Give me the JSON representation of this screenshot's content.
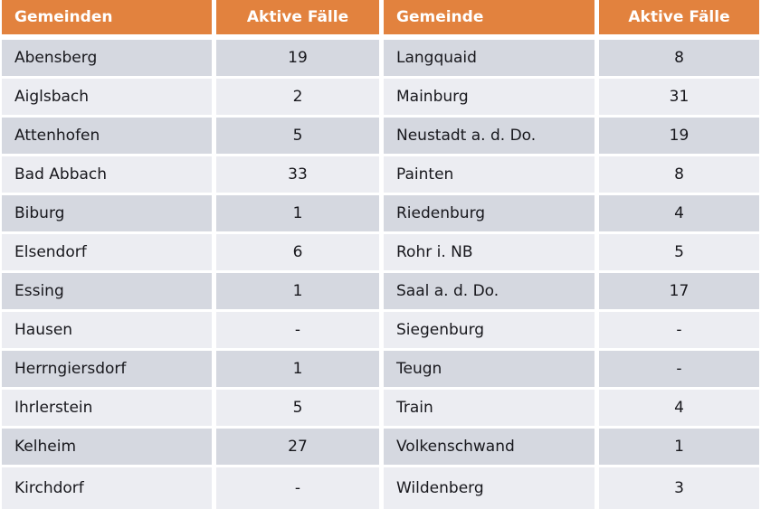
{
  "style": {
    "header_bg": "#e2823e",
    "header_text": "#ffffff",
    "row_dark": "#d5d8e0",
    "row_light": "#ecedf2",
    "cell_text": "#17171c",
    "gap_color": "#ffffff"
  },
  "chart_data": {
    "type": "table",
    "title": "",
    "tables": [
      {
        "headers": [
          "Gemeinden",
          "Aktive Fälle"
        ],
        "rows": [
          [
            "Abensberg",
            "19"
          ],
          [
            "Aiglsbach",
            "2"
          ],
          [
            "Attenhofen",
            "5"
          ],
          [
            "Bad Abbach",
            "33"
          ],
          [
            "Biburg",
            "1"
          ],
          [
            "Elsendorf",
            "6"
          ],
          [
            "Essing",
            "1"
          ],
          [
            "Hausen",
            "-"
          ],
          [
            "Herrngiersdorf",
            "1"
          ],
          [
            "Ihrlerstein",
            "5"
          ],
          [
            "Kelheim",
            "27"
          ],
          [
            "Kirchdorf",
            "-"
          ]
        ]
      },
      {
        "headers": [
          "Gemeinde",
          "Aktive Fälle"
        ],
        "rows": [
          [
            "Langquaid",
            "8"
          ],
          [
            "Mainburg",
            "31"
          ],
          [
            "Neustadt a. d. Do.",
            "19"
          ],
          [
            "Painten",
            "8"
          ],
          [
            "Riedenburg",
            "4"
          ],
          [
            "Rohr i. NB",
            "5"
          ],
          [
            "Saal a. d. Do.",
            "17"
          ],
          [
            "Siegenburg",
            "-"
          ],
          [
            "Teugn",
            "-"
          ],
          [
            "Train",
            "4"
          ],
          [
            "Volkenschwand",
            "1"
          ],
          [
            "Wildenberg",
            "3"
          ]
        ]
      }
    ]
  }
}
